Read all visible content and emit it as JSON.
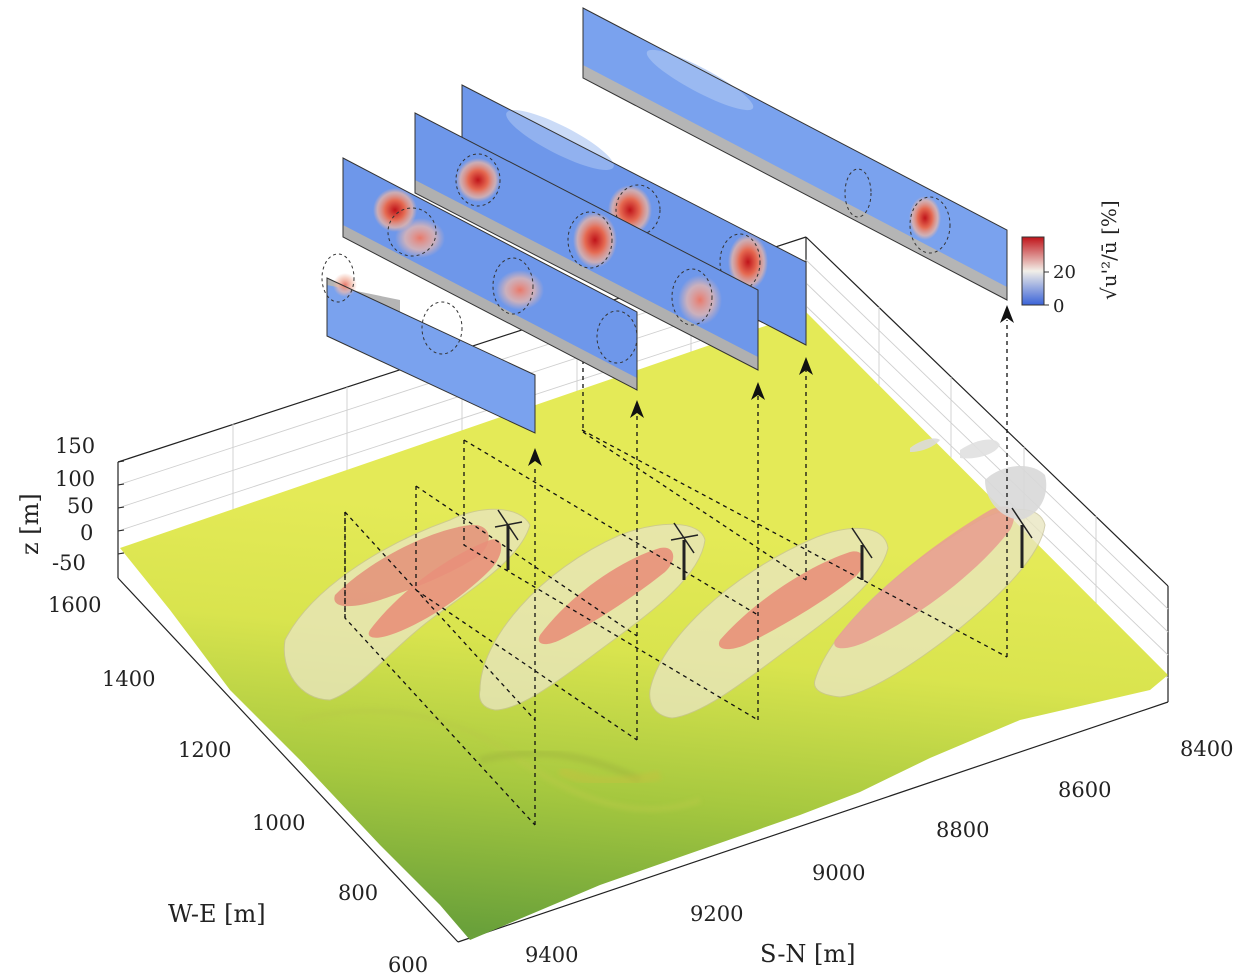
{
  "chart_data": {
    "type": "3d-surface",
    "axes": {
      "x": {
        "label": "S-N [m]",
        "ticks": [
          "8400",
          "8600",
          "8800",
          "9000",
          "9200",
          "9400"
        ],
        "range": [
          8400,
          9500
        ]
      },
      "y": {
        "label": "W-E [m]",
        "ticks": [
          "600",
          "800",
          "1000",
          "1200",
          "1400",
          "1600"
        ],
        "range": [
          600,
          1650
        ]
      },
      "z": {
        "label": "z [m]",
        "ticks": [
          "150",
          "100",
          "50",
          "0",
          "-50"
        ],
        "range": [
          -50,
          150
        ]
      }
    },
    "colorbar": {
      "label": "√u'²/ū [%]",
      "ticks": [
        "0",
        "20"
      ],
      "range": [
        0,
        30
      ],
      "colors": [
        "#3a63d8",
        "#f2f2f2",
        "#c0141a"
      ]
    },
    "surface_colors": [
      "#6da13a",
      "#e2ea55"
    ],
    "isosurface_colors": {
      "outer": "#ece9c4",
      "inner": "#e8907a"
    },
    "turbines": 4,
    "cross_sections": 5,
    "grid": true
  }
}
